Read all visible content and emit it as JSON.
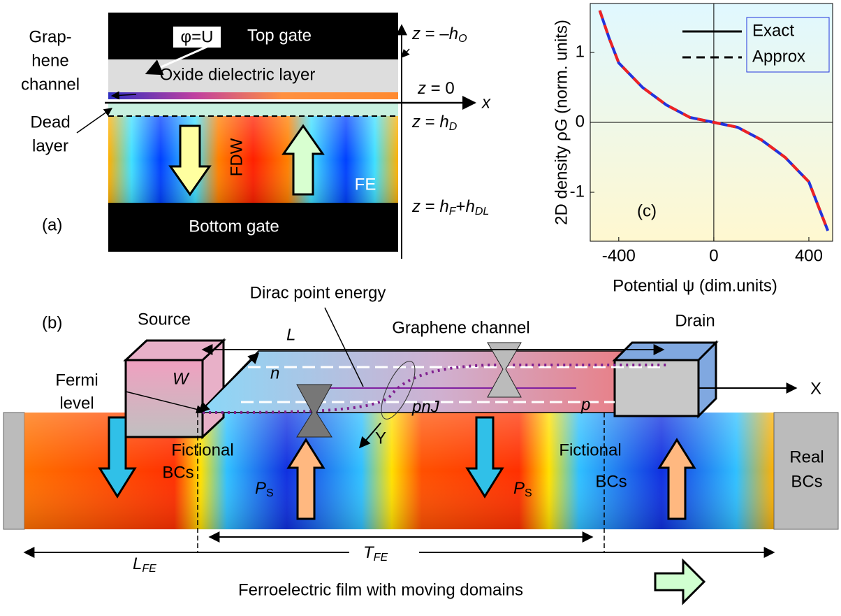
{
  "panel_a": {
    "label": "(a)",
    "top_gate": "Top gate",
    "bottom_gate": "Bottom gate",
    "oxide": "Oxide dielectric layer",
    "phi": "φ=U",
    "graphene": [
      "Grap-",
      "hene",
      "channel"
    ],
    "dead": [
      "Dead",
      "layer"
    ],
    "fdw": "FDW",
    "fe": "FE",
    "x_axis": "x",
    "z_labels": [
      [
        "z",
        " = –",
        "h",
        "O"
      ],
      [
        "z",
        " = 0"
      ],
      [
        "z",
        " = ",
        "h",
        "D"
      ],
      [
        "z",
        " = ",
        "h",
        "F",
        "+",
        "h",
        "DL"
      ]
    ]
  },
  "panel_b": {
    "label": "(b)",
    "source": "Source",
    "drain": "Drain",
    "dirac": "Dirac point energy",
    "channel": "Graphene channel",
    "length": "L",
    "width": "W",
    "fermi": [
      "Fermi",
      "level"
    ],
    "n": "n",
    "p": "p",
    "pnj": "pnJ",
    "y_axis": "Y",
    "x_axis": "X",
    "fictional": [
      "Fictional",
      "BCs"
    ],
    "real": [
      "Real",
      "BCs"
    ],
    "ps": [
      "P",
      "S"
    ],
    "tfe": [
      "T",
      "FE"
    ],
    "lfe": [
      "L",
      "FE"
    ],
    "caption": "Ferroelectric film with moving domains"
  },
  "chart_data": {
    "type": "line",
    "label": "(c)",
    "x_label": "Potential ψ (dim.units)",
    "y_label": "2D density ρG (norm. units)",
    "x": [
      -480,
      -440,
      -400,
      -300,
      -200,
      -100,
      0,
      100,
      200,
      300,
      400,
      440,
      480
    ],
    "series": [
      {
        "name": "Exact",
        "color": "#2233dd",
        "values": [
          1.6,
          1.2,
          0.85,
          0.5,
          0.25,
          0.07,
          0,
          -0.07,
          -0.25,
          -0.5,
          -0.85,
          -1.2,
          -1.55
        ]
      },
      {
        "name": "Approx",
        "color": "#ee2222",
        "values": [
          1.6,
          1.2,
          0.85,
          0.5,
          0.25,
          0.07,
          0,
          -0.07,
          -0.25,
          -0.5,
          -0.85,
          -1.2,
          -1.55
        ]
      }
    ],
    "xlim": [
      -520,
      500
    ],
    "ylim": [
      -1.7,
      1.7
    ],
    "xticks": [
      -400,
      0,
      400
    ],
    "yticks": [
      -1,
      0,
      1
    ],
    "legend": "top-right"
  }
}
